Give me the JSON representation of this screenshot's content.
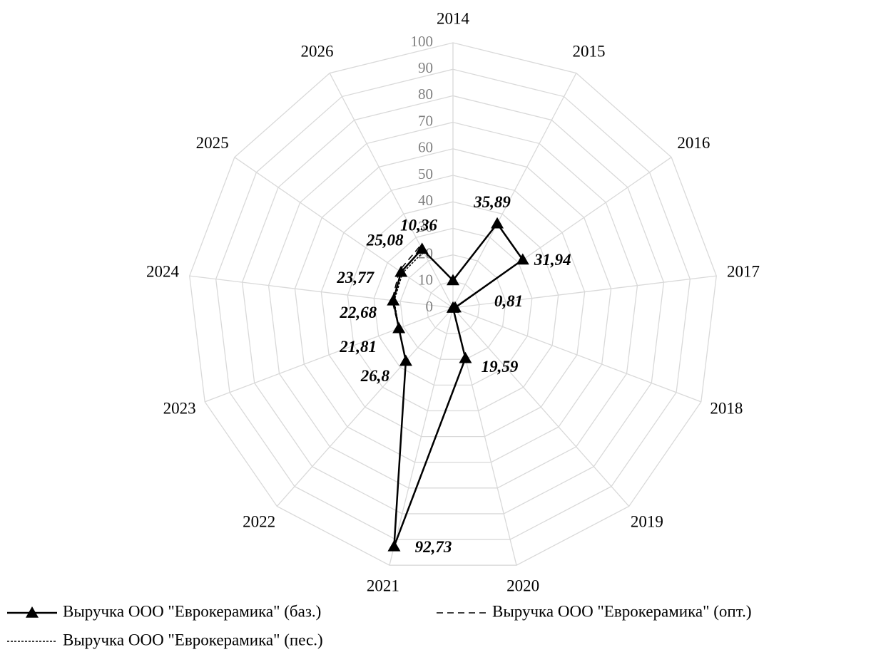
{
  "chart_data": {
    "type": "radar",
    "categories": [
      "2014",
      "2015",
      "2016",
      "2017",
      "2018",
      "2019",
      "2020",
      "2021",
      "2022",
      "2023",
      "2024",
      "2025",
      "2026"
    ],
    "ylim": [
      0,
      100
    ],
    "yticks": [
      0,
      10,
      20,
      30,
      40,
      50,
      60,
      70,
      80,
      90,
      100
    ],
    "grid": true,
    "legend": "bottom",
    "series": [
      {
        "name": "Выручка ООО \"Еврокерамика\" (баз.)",
        "color": "#000000",
        "style": "solid",
        "marker": "triangle",
        "values": [
          10.36,
          35.89,
          31.94,
          0.81,
          0,
          0,
          19.59,
          92.73,
          26.8,
          21.81,
          22.68,
          23.77,
          25.08
        ],
        "value_labels": [
          "10,36",
          "35,89",
          "31,94",
          "0,81",
          null,
          null,
          "19,59",
          "92,73",
          "26,8",
          "21,81",
          "22,68",
          "23,77",
          "25,08"
        ]
      },
      {
        "name": "Выручка ООО \"Еврокерамика\" (опт.)",
        "color": "#000000",
        "style": "dashed",
        "values": [
          null,
          null,
          null,
          null,
          null,
          null,
          null,
          null,
          26.8,
          21.81,
          23.1,
          24.6,
          26.5
        ]
      },
      {
        "name": "Выручка ООО \"Еврокерамика\" (пес.)",
        "color": "#000000",
        "style": "dotted",
        "values": [
          null,
          null,
          null,
          null,
          null,
          null,
          null,
          null,
          26.8,
          21.81,
          22.3,
          23.1,
          23.9
        ]
      }
    ]
  }
}
